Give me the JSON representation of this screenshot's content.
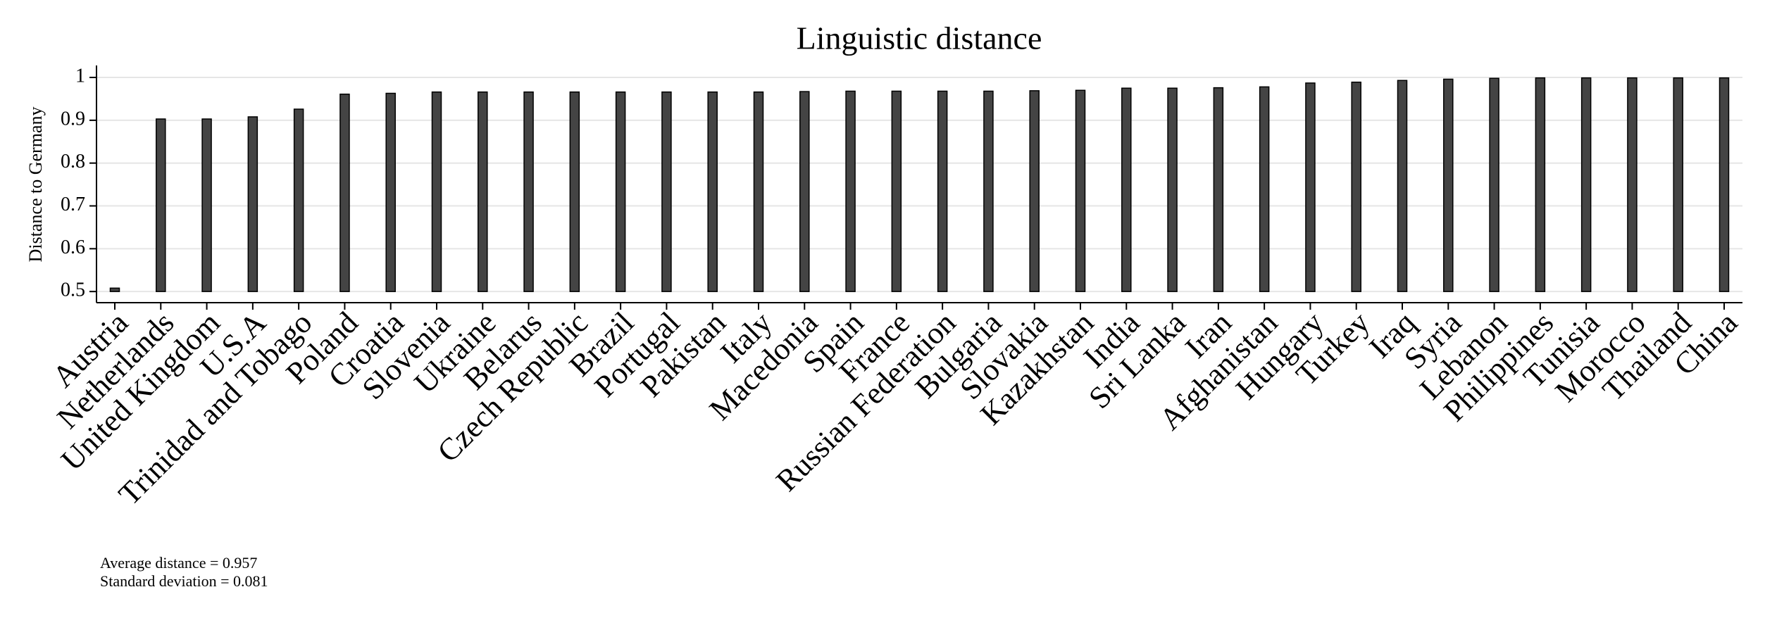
{
  "chart_data": {
    "type": "bar",
    "title": "Linguistic distance",
    "y_label": "Distance to Germany",
    "categories": [
      "Austria",
      "Netherlands",
      "United Kingdom",
      "U.S.A",
      "Trinidad and Tobago",
      "Poland",
      "Croatia",
      "Slovenia",
      "Ukraine",
      "Belarus",
      "Czech Republic",
      "Brazil",
      "Portugal",
      "Pakistan",
      "Italy",
      "Macedonia",
      "Spain",
      "France",
      "Russian Federation",
      "Bulgaria",
      "Slovakia",
      "Kazakhstan",
      "India",
      "Sri Lanka",
      "Iran",
      "Afghanistan",
      "Hungary",
      "Turkey",
      "Iraq",
      "Syria",
      "Lebanon",
      "Philippines",
      "Tunisia",
      "Morocco",
      "Thailand",
      "China"
    ],
    "values": [
      0.508,
      0.903,
      0.903,
      0.908,
      0.926,
      0.961,
      0.963,
      0.966,
      0.966,
      0.966,
      0.966,
      0.966,
      0.966,
      0.966,
      0.966,
      0.967,
      0.968,
      0.968,
      0.968,
      0.968,
      0.969,
      0.97,
      0.975,
      0.975,
      0.976,
      0.978,
      0.987,
      0.989,
      0.993,
      0.996,
      0.998,
      0.999,
      0.999,
      0.999,
      0.999,
      0.999
    ],
    "color": "#444444",
    "ylim": [
      0.474,
      1.028
    ],
    "yticks": [
      0.5,
      0.6,
      0.7,
      0.8,
      0.9,
      1
    ],
    "grid": true,
    "annotations": [
      "Average distance = 0.957",
      "Standard deviation = 0.081"
    ]
  }
}
